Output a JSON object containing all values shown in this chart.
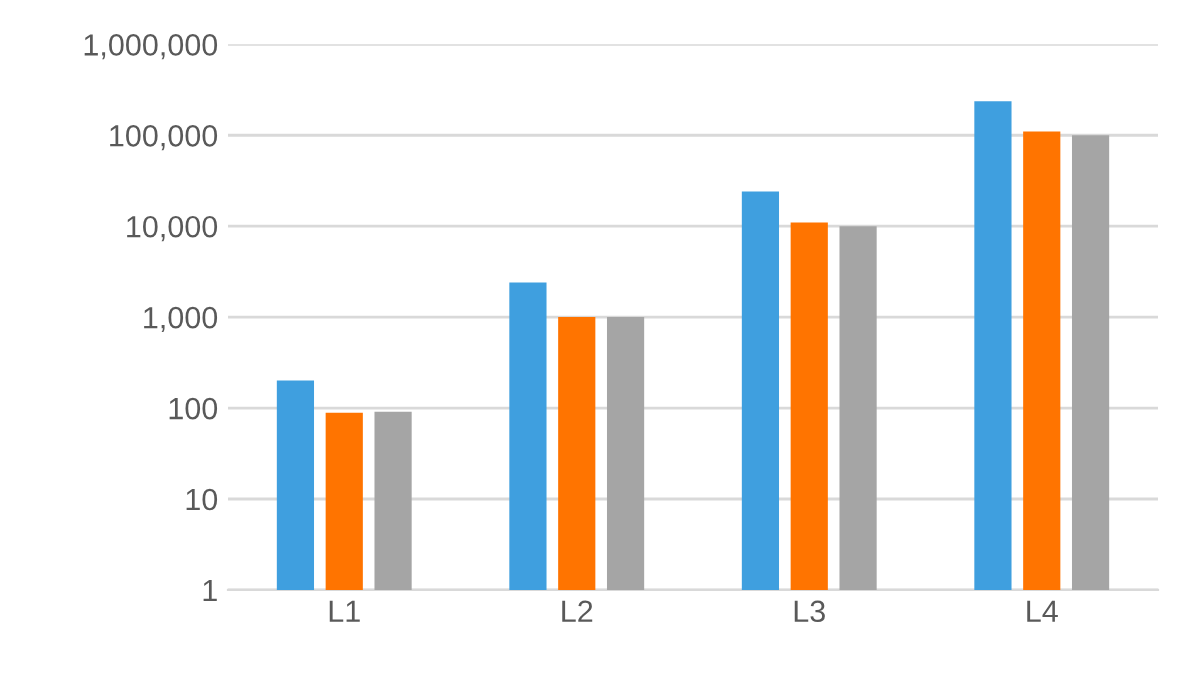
{
  "chart_data": {
    "type": "bar",
    "categories": [
      "L1",
      "L2",
      "L3",
      "L4"
    ],
    "series": [
      {
        "color": "#3f9fdf",
        "values": [
          200,
          2400,
          24000,
          237000
        ]
      },
      {
        "color": "#ff7400",
        "values": [
          88,
          1000,
          11000,
          110000
        ]
      },
      {
        "color": "#a5a5a5",
        "values": [
          90,
          1000,
          10000,
          100000
        ]
      }
    ],
    "log": true,
    "ylim": [
      1,
      1000000
    ],
    "yticks": [
      {
        "value": 1,
        "label": "1"
      },
      {
        "value": 10,
        "label": "10"
      },
      {
        "value": 100,
        "label": "100"
      },
      {
        "value": 1000,
        "label": "1,000"
      },
      {
        "value": 10000,
        "label": "10,000"
      },
      {
        "value": 100000,
        "label": "100,000"
      },
      {
        "value": 1000000,
        "label": "1,000,000"
      }
    ],
    "grid": "y",
    "legend": false
  }
}
